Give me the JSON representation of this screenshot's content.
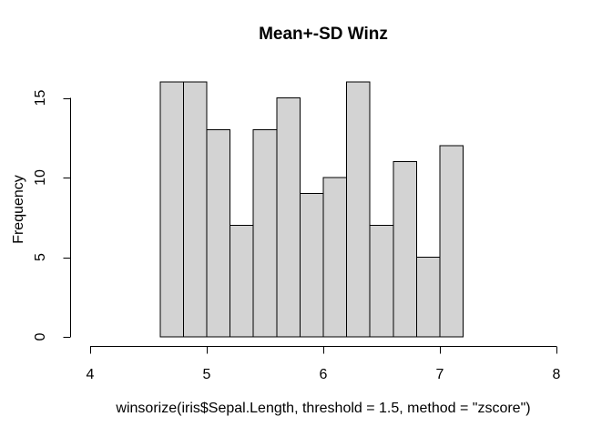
{
  "chart_data": {
    "type": "bar",
    "subtype": "histogram",
    "title": "Mean+-SD Winz",
    "xlabel": "winsorize(iris$Sepal.Length, threshold = 1.5, method = \"zscore\")",
    "ylabel": "Frequency",
    "bins": {
      "start": 4.6,
      "width": 0.2,
      "end": 7.2
    },
    "counts": [
      16,
      16,
      13,
      7,
      13,
      15,
      9,
      10,
      16,
      7,
      11,
      5,
      12
    ],
    "x_ticks": [
      4,
      5,
      6,
      7,
      8
    ],
    "y_ticks": [
      0,
      5,
      10,
      15
    ],
    "xlim": [
      4,
      8
    ],
    "ylim": [
      0,
      16
    ],
    "grid": false,
    "legend_position": "none",
    "colors": {
      "bar_fill": "#d3d3d3",
      "bar_border": "#000000",
      "axis": "#000000",
      "text": "#000000",
      "background": "#ffffff"
    }
  }
}
